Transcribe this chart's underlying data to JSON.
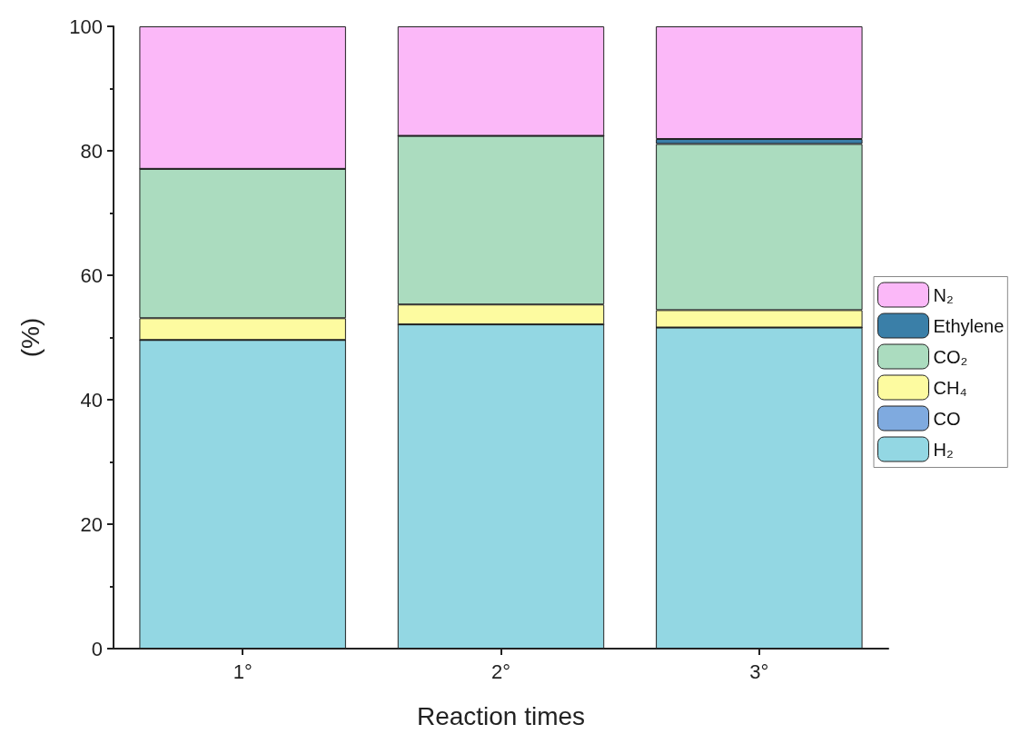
{
  "chart_data": {
    "type": "bar",
    "stacked": true,
    "xlabel": "Reaction times",
    "ylabel": "(%)",
    "categories": [
      "1°",
      "2°",
      "3°"
    ],
    "ylim": [
      0,
      100
    ],
    "yticks": [
      0,
      20,
      40,
      60,
      80,
      100
    ],
    "grid": false,
    "legend": "right",
    "series": [
      {
        "name": "H₂",
        "color": "#93d7e3",
        "values": [
          49.6,
          52.1,
          51.6
        ]
      },
      {
        "name": "CO",
        "color": "#7faadf",
        "values": [
          0,
          0,
          0
        ]
      },
      {
        "name": "CH₄",
        "color": "#fdfba0",
        "values": [
          3.5,
          3.2,
          2.8
        ]
      },
      {
        "name": "CO₂",
        "color": "#abdcbf",
        "values": [
          24.0,
          27.1,
          26.7
        ]
      },
      {
        "name": "Ethylene",
        "color": "#3a7fa8",
        "values": [
          0,
          0,
          0.8
        ]
      },
      {
        "name": "N₂",
        "color": "#fbb8f8",
        "values": [
          22.9,
          17.6,
          18.1
        ]
      }
    ]
  }
}
